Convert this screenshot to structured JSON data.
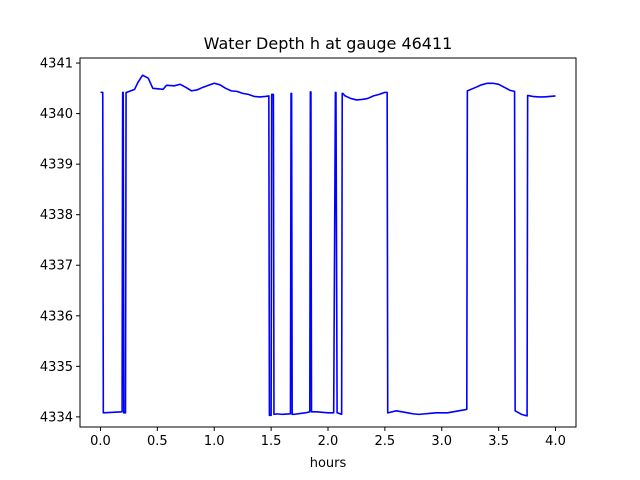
{
  "chart_data": {
    "type": "line",
    "title": "Water Depth h at gauge 46411",
    "xlabel": "hours",
    "ylabel": "",
    "xlim": [
      -0.18,
      4.18
    ],
    "ylim": [
      4333.8,
      4341.1
    ],
    "xticks": [
      0.0,
      0.5,
      1.0,
      1.5,
      2.0,
      2.5,
      3.0,
      3.5,
      4.0
    ],
    "xtick_labels": [
      "0.0",
      "0.5",
      "1.0",
      "1.5",
      "2.0",
      "2.5",
      "3.0",
      "3.5",
      "4.0"
    ],
    "yticks": [
      4334,
      4335,
      4336,
      4337,
      4338,
      4339,
      4340,
      4341
    ],
    "ytick_labels": [
      "4334",
      "4335",
      "4336",
      "4337",
      "4338",
      "4339",
      "4340",
      "4341"
    ],
    "grid": false,
    "series": [
      {
        "color": "#0000ff",
        "x": [
          0.0,
          0.02,
          0.025,
          0.19,
          0.195,
          0.2,
          0.205,
          0.22,
          0.225,
          0.23,
          0.3,
          0.33,
          0.37,
          0.42,
          0.46,
          0.55,
          0.58,
          0.65,
          0.7,
          0.75,
          0.8,
          0.85,
          0.9,
          0.95,
          1.0,
          1.05,
          1.1,
          1.15,
          1.2,
          1.25,
          1.3,
          1.35,
          1.4,
          1.45,
          1.48,
          1.485,
          1.5,
          1.505,
          1.52,
          1.525,
          1.55,
          1.6,
          1.67,
          1.675,
          1.68,
          1.685,
          1.7,
          1.8,
          1.84,
          1.845,
          1.85,
          1.855,
          1.9,
          2.0,
          2.05,
          2.065,
          2.07,
          2.08,
          2.085,
          2.12,
          2.125,
          2.13,
          2.15,
          2.2,
          2.25,
          2.3,
          2.35,
          2.4,
          2.45,
          2.5,
          2.52,
          2.525,
          2.6,
          2.65,
          2.7,
          2.75,
          2.8,
          2.85,
          2.9,
          2.95,
          3.0,
          3.05,
          3.1,
          3.15,
          3.2,
          3.22,
          3.225,
          3.3,
          3.35,
          3.4,
          3.45,
          3.5,
          3.55,
          3.6,
          3.64,
          3.645,
          3.7,
          3.75,
          3.755,
          3.8,
          3.85,
          3.9,
          3.95,
          4.0
        ],
        "y": [
          4340.42,
          4340.42,
          4334.08,
          4334.1,
          4340.42,
          4340.42,
          4334.08,
          4334.08,
          4340.42,
          4340.42,
          4340.48,
          4340.62,
          4340.76,
          4340.7,
          4340.5,
          4340.48,
          4340.56,
          4340.55,
          4340.58,
          4340.52,
          4340.45,
          4340.47,
          4340.52,
          4340.56,
          4340.6,
          4340.57,
          4340.5,
          4340.45,
          4340.44,
          4340.4,
          4340.38,
          4340.34,
          4340.33,
          4340.34,
          4340.35,
          4334.03,
          4334.03,
          4340.38,
          4340.38,
          4334.05,
          4334.06,
          4334.05,
          4334.06,
          4340.4,
          4340.4,
          4334.05,
          4334.05,
          4334.08,
          4334.1,
          4340.43,
          4340.43,
          4334.1,
          4334.1,
          4334.08,
          4334.08,
          4340.42,
          4340.42,
          4334.08,
          4334.08,
          4334.05,
          4340.4,
          4340.4,
          4340.35,
          4340.3,
          4340.27,
          4340.28,
          4340.3,
          4340.35,
          4340.38,
          4340.42,
          4340.42,
          4334.08,
          4334.12,
          4334.1,
          4334.08,
          4334.06,
          4334.05,
          4334.06,
          4334.07,
          4334.08,
          4334.08,
          4334.08,
          4334.1,
          4334.12,
          4334.14,
          4334.15,
          4340.45,
          4340.52,
          4340.57,
          4340.6,
          4340.6,
          4340.58,
          4340.52,
          4340.46,
          4340.44,
          4334.12,
          4334.05,
          4334.02,
          4340.36,
          4340.34,
          4340.33,
          4340.33,
          4340.34,
          4340.35
        ]
      }
    ]
  }
}
